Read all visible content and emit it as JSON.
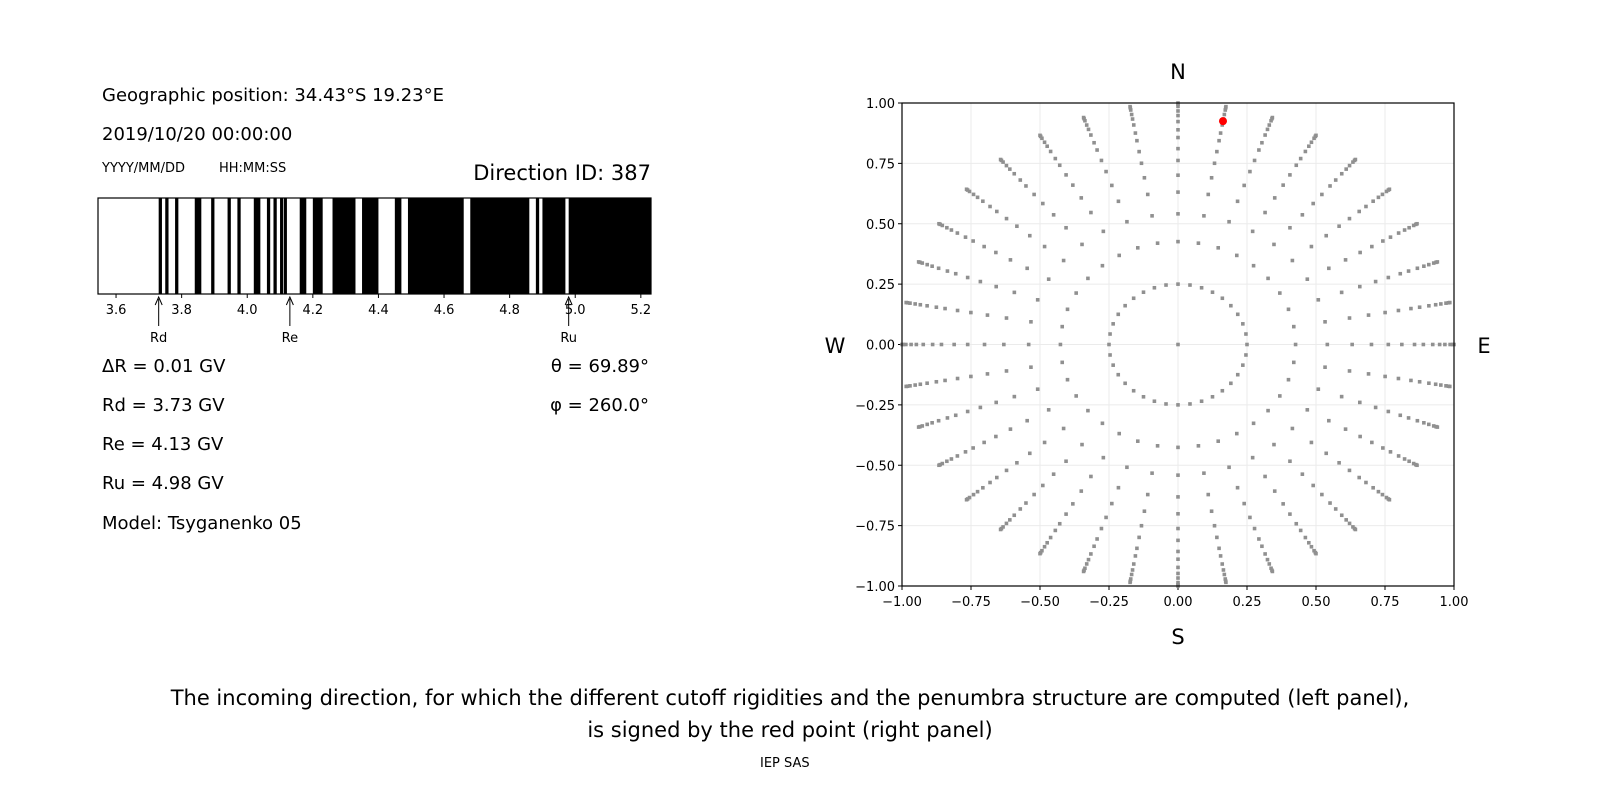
{
  "left_panel": {
    "geo_position": "Geographic position: 34.43°S 19.23°E",
    "datetime": "2019/10/20 00:00:00",
    "date_format": "YYYY/MM/DD",
    "time_format": "HH:MM:SS",
    "direction_id": "Direction ID: 387",
    "delta_r": "ΔR = 0.01 GV",
    "rd": "Rd = 3.73 GV",
    "re": "Re = 4.13 GV",
    "ru": "Ru = 4.98 GV",
    "model": "Model: Tsyganenko 05",
    "theta": "θ = 69.89°",
    "phi": "φ = 260.0°"
  },
  "caption": {
    "line1": "The incoming direction, for which the different cutoff rigidities and the penumbra structure are computed (left panel),",
    "line2": "is signed by the red point (right panel)",
    "footer": "IEP SAS"
  },
  "chart_data": [
    {
      "type": "bar",
      "subtype": "penumbra-barcode",
      "xlim": [
        3.545,
        5.231
      ],
      "xticks": [
        "3.6",
        "3.8",
        "4.0",
        "4.2",
        "4.4",
        "4.6",
        "4.8",
        "5.0",
        "5.2"
      ],
      "xtick_values": [
        3.6,
        3.8,
        4.0,
        4.2,
        4.4,
        4.6,
        4.8,
        5.0,
        5.2
      ],
      "forbidden_color": "#000000",
      "allowed_color": "#ffffff",
      "forbidden_intervals_gv": [
        [
          3.73,
          3.74
        ],
        [
          3.75,
          3.76
        ],
        [
          3.78,
          3.79
        ],
        [
          3.84,
          3.86
        ],
        [
          3.89,
          3.9
        ],
        [
          3.94,
          3.95
        ],
        [
          3.97,
          3.98
        ],
        [
          4.02,
          4.04
        ],
        [
          4.06,
          4.07
        ],
        [
          4.08,
          4.09
        ],
        [
          4.1,
          4.11
        ],
        [
          4.112,
          4.121
        ],
        [
          4.16,
          4.18
        ],
        [
          4.2,
          4.23
        ],
        [
          4.26,
          4.33
        ],
        [
          4.35,
          4.4
        ],
        [
          4.45,
          4.47
        ],
        [
          4.49,
          4.66
        ],
        [
          4.68,
          4.86
        ],
        [
          4.88,
          4.89
        ],
        [
          4.9,
          4.97
        ],
        [
          4.98,
          5.231
        ]
      ],
      "markers": [
        {
          "label": "Rd",
          "value": 3.73
        },
        {
          "label": "Re",
          "value": 4.13
        },
        {
          "label": "Ru",
          "value": 4.98
        }
      ]
    },
    {
      "type": "scatter",
      "xlim": [
        -1,
        1
      ],
      "ylim": [
        -1,
        1
      ],
      "grid": true,
      "ticks": [
        "-1.00",
        "-0.75",
        "-0.50",
        "-0.25",
        "0.00",
        "0.25",
        "0.50",
        "0.75",
        "1.00"
      ],
      "tick_values": [
        -1,
        -0.75,
        -0.5,
        -0.25,
        0,
        0.25,
        0.5,
        0.75,
        1
      ],
      "compass": {
        "top": "N",
        "bottom": "S",
        "left": "W",
        "right": "E"
      },
      "point_color": "#909090",
      "highlight_color": "#ff0000",
      "ray_azimuths_deg_step": 10,
      "ray_radii": [
        0.25,
        0.426,
        0.541,
        0.631,
        0.701,
        0.762,
        0.811,
        0.857,
        0.889,
        0.923,
        0.948,
        0.967,
        0.986,
        0.995,
        1.0
      ],
      "center_point": [
        0,
        0
      ],
      "highlight_point": [
        0.163,
        0.925
      ]
    }
  ]
}
